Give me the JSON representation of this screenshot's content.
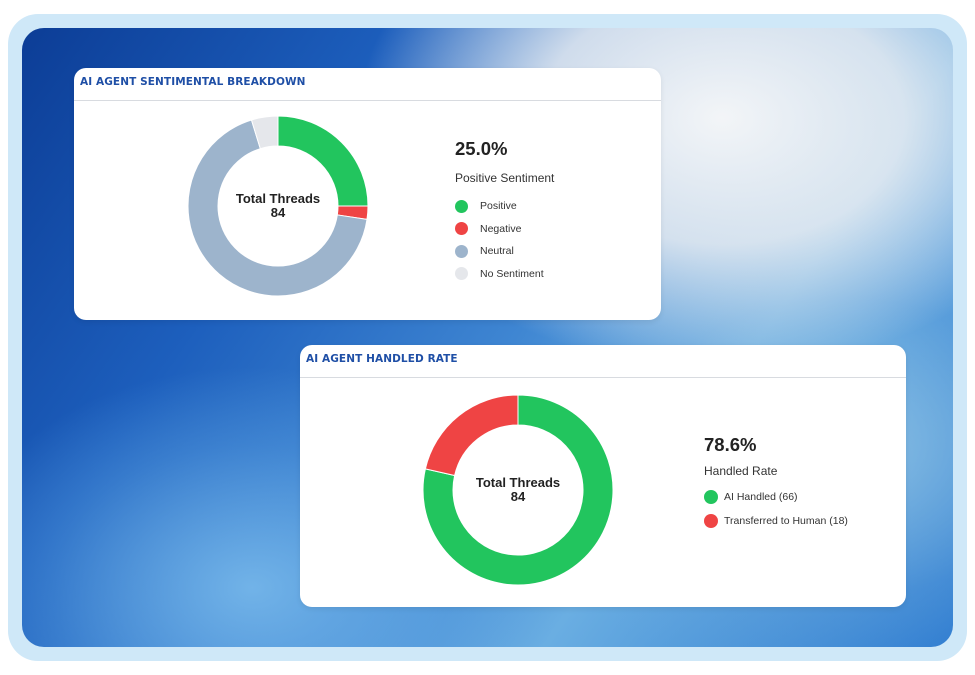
{
  "cards": [
    {
      "title": "AI AGENT SENTIMENTAL BREAKDOWN",
      "center_label": "Total Threads",
      "center_value": "84",
      "percentage": "25.0%",
      "percentage_label": "Positive Sentiment",
      "legend": [
        {
          "label": "Positive",
          "color": "#22c55e"
        },
        {
          "label": "Negative",
          "color": "#ef4444"
        },
        {
          "label": "Neutral",
          "color": "#9db4cc"
        },
        {
          "label": "No Sentiment",
          "color": "#e5e7eb"
        }
      ]
    },
    {
      "title": "AI AGENT HANDLED RATE",
      "center_label": "Total Threads",
      "center_value": "84",
      "percentage": "78.6%",
      "percentage_label": "Handled Rate",
      "legend": [
        {
          "label": "AI Handled (66)",
          "color": "#22c55e"
        },
        {
          "label": "Transferred to Human (18)",
          "color": "#ef4444"
        }
      ]
    }
  ],
  "chart_data": [
    {
      "type": "pie",
      "donut": true,
      "categories": [
        "Positive",
        "Negative",
        "Neutral",
        "No Sentiment"
      ],
      "values": [
        21,
        2,
        57,
        4
      ],
      "colors": [
        "#22c55e",
        "#ef4444",
        "#9db4cc",
        "#e5e7eb"
      ]
    },
    {
      "type": "pie",
      "donut": true,
      "categories": [
        "AI Handled",
        "Transferred to Human"
      ],
      "values": [
        66,
        18
      ],
      "colors": [
        "#22c55e",
        "#ef4444"
      ]
    }
  ]
}
